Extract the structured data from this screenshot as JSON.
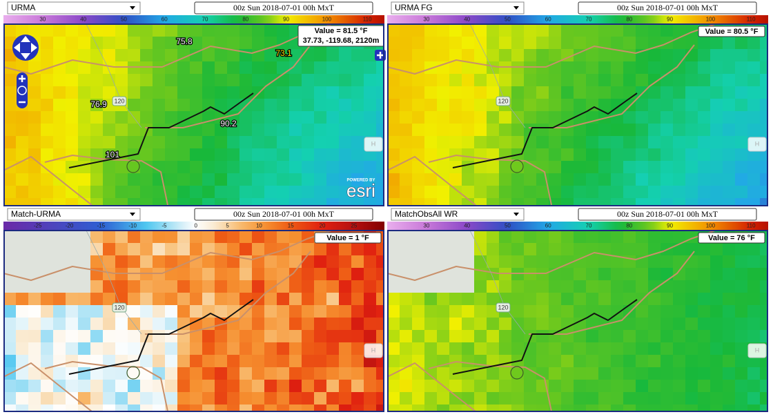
{
  "panels": [
    {
      "product": "URMA",
      "time": "00z Sun 2018-07-01 00h MxT",
      "colorbar": {
        "ticks": [
          30,
          40,
          50,
          60,
          70,
          80,
          90,
          100,
          110
        ]
      },
      "value": "Value = 81.5 °F",
      "location": "37.73, -119.68, 2120m",
      "road": "120",
      "button": "H",
      "stations": [
        "75.8",
        "73.1",
        "76.9",
        "90.2",
        "101"
      ],
      "attribution": {
        "powered": "POWERED BY",
        "brand": "esri"
      }
    },
    {
      "product": "URMA FG",
      "time": "00z Sun 2018-07-01 00h MxT",
      "colorbar": {
        "ticks": [
          30,
          40,
          50,
          60,
          70,
          80,
          90,
          100,
          110
        ]
      },
      "value": "Value = 80.5 °F",
      "road": "120",
      "button": "H"
    },
    {
      "product": "Match-URMA",
      "time": "00z Sun 2018-07-01 00h MxT",
      "colorbar": {
        "ticks": [
          -25,
          -20,
          -15,
          -10,
          -5,
          0,
          5,
          10,
          15,
          20,
          25
        ]
      },
      "value": "Value = 1  °F",
      "road": "120",
      "button": "H"
    },
    {
      "product": "MatchObsAll WR",
      "time": "00z Sun 2018-07-01 00h MxT",
      "colorbar": {
        "ticks": [
          30,
          40,
          50,
          60,
          70,
          80,
          90,
          100,
          110
        ]
      },
      "value": "Value = 76  °F",
      "road": "120",
      "button": "H"
    }
  ]
}
